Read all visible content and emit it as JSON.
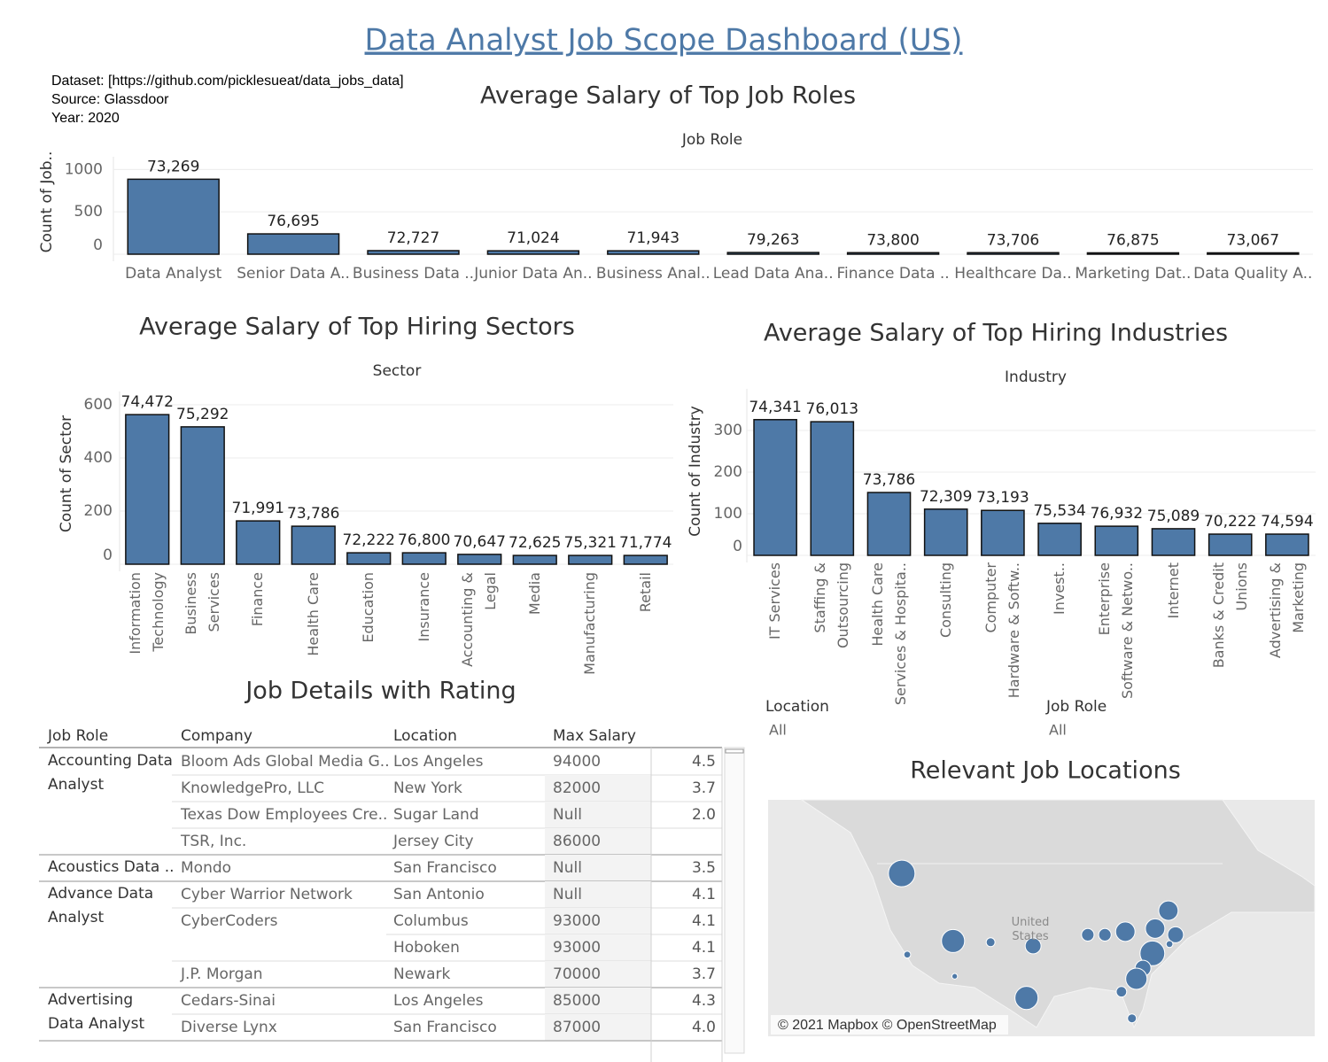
{
  "header": {
    "title": "Data Analyst Job Scope Dashboard (US)",
    "info": [
      "Dataset: [https://github.com/picklesueat/data_jobs_data]",
      "Source: Glassdoor",
      "Year: 2020"
    ]
  },
  "chart_data": [
    {
      "type": "bar",
      "title": "Average Salary of Top Job Roles",
      "x_label": "Job Role",
      "y_label": "Count of Job..",
      "categories": [
        "Data Analyst",
        "Senior Data A..",
        "Business Data ..",
        "Junior Data An..",
        "Business Anal..",
        "Lead Data Ana..",
        "Finance Data ..",
        "Healthcare Da..",
        "Marketing Dat..",
        "Data Quality A.."
      ],
      "values": [
        885,
        240,
        42,
        40,
        40,
        20,
        18,
        18,
        16,
        16
      ],
      "salaries": [
        {
          "value": 73269,
          "label": "73,269"
        },
        {
          "value": 76695,
          "label": "76,695"
        },
        {
          "value": 72727,
          "label": "72,727"
        },
        {
          "value": 71024,
          "label": "71,024"
        },
        {
          "value": 71943,
          "label": "71,943"
        },
        {
          "value": 79263,
          "label": "79,263"
        },
        {
          "value": 73800,
          "label": "73,800"
        },
        {
          "value": 73706,
          "label": "73,706"
        },
        {
          "value": 76875,
          "label": "76,875"
        },
        {
          "value": 73067,
          "label": "73,067"
        }
      ],
      "color": "#4e79a7",
      "ylim": [
        0,
        1150
      ],
      "yticks": [
        0,
        500,
        1000
      ],
      "grid": true
    },
    {
      "type": "bar",
      "title": "Average Salary of Top Hiring Sectors",
      "x_label": "Sector",
      "y_label": "Count of Sector",
      "categories": [
        "Information\nTechnology",
        "Business\nServices",
        "Finance",
        "Health Care",
        "Education",
        "Insurance",
        "Accounting &\nLegal",
        "Media",
        "Manufacturing",
        "Retail"
      ],
      "values": [
        563,
        517,
        163,
        143,
        43,
        43,
        37,
        33,
        33,
        33
      ],
      "salaries": [
        {
          "value": 74472,
          "label": "74,472"
        },
        {
          "value": 75292,
          "label": "75,292"
        },
        {
          "value": 71991,
          "label": "71,991"
        },
        {
          "value": 73786,
          "label": "73,786"
        },
        {
          "value": 72222,
          "label": "72,222"
        },
        {
          "value": 76800,
          "label": "76,800"
        },
        {
          "value": 70647,
          "label": "70,647"
        },
        {
          "value": 72625,
          "label": "72,625"
        },
        {
          "value": 75321,
          "label": "75,321"
        },
        {
          "value": 71774,
          "label": "71,774"
        }
      ],
      "color": "#4e79a7",
      "ylim": [
        0,
        650
      ],
      "yticks": [
        0,
        200,
        400,
        600
      ],
      "grid": true
    },
    {
      "type": "bar",
      "title": "Average Salary of Top Hiring Industries",
      "x_label": "Industry",
      "y_label": "Count of Industry",
      "categories": [
        "IT Services",
        "Staffing &\nOutsourcing",
        "Health Care\nServices & Hospita..",
        "Consulting",
        "Computer\nHardware & Softw..",
        "Invest..",
        "Enterprise\nSoftware & Netwo..",
        "Internet",
        "Banks & Credit\nUnions",
        "Advertising &\nMarketing"
      ],
      "values": [
        326,
        321,
        151,
        111,
        108,
        77,
        70,
        64,
        51,
        51
      ],
      "salaries": [
        {
          "value": 74341,
          "label": "74,341"
        },
        {
          "value": 76013,
          "label": "76,013"
        },
        {
          "value": 73786,
          "label": "73,786"
        },
        {
          "value": 72309,
          "label": "72,309"
        },
        {
          "value": 73193,
          "label": "73,193"
        },
        {
          "value": 75534,
          "label": "75,534"
        },
        {
          "value": 76932,
          "label": "76,932"
        },
        {
          "value": 75089,
          "label": "75,089"
        },
        {
          "value": 70222,
          "label": "70,222"
        },
        {
          "value": 74594,
          "label": "74,594"
        }
      ],
      "color": "#4e79a7",
      "ylim": [
        0,
        400
      ],
      "yticks": [
        0,
        100,
        200,
        300
      ],
      "grid": true
    },
    {
      "type": "bubble_map",
      "title": "Relevant Job Locations",
      "attribution": "© 2021 Mapbox © OpenStreetMap",
      "region_label": "United\nStates",
      "color": "#4e79a7",
      "lon_range": [
        -146.5,
        -47.5
      ],
      "lat_range": [
        21.3,
        59.5
      ],
      "points": [
        {
          "lon": -122.3,
          "lat": 47.6,
          "size": 45
        },
        {
          "lon": -121.3,
          "lat": 34.5,
          "size": 3
        },
        {
          "lon": -112.7,
          "lat": 31.0,
          "size": 2
        },
        {
          "lon": -113.0,
          "lat": 36.7,
          "size": 34
        },
        {
          "lon": -106.2,
          "lat": 36.5,
          "size": 5
        },
        {
          "lon": -98.5,
          "lat": 35.9,
          "size": 16
        },
        {
          "lon": -99.7,
          "lat": 27.5,
          "size": 34
        },
        {
          "lon": -88.6,
          "lat": 37.7,
          "size": 10
        },
        {
          "lon": -85.5,
          "lat": 37.7,
          "size": 10
        },
        {
          "lon": -81.8,
          "lat": 38.2,
          "size": 24
        },
        {
          "lon": -74.0,
          "lat": 41.6,
          "size": 24
        },
        {
          "lon": -76.4,
          "lat": 38.7,
          "size": 24
        },
        {
          "lon": -72.7,
          "lat": 37.7,
          "size": 16
        },
        {
          "lon": -73.8,
          "lat": 36.2,
          "size": 3
        },
        {
          "lon": -76.9,
          "lat": 34.7,
          "size": 39
        },
        {
          "lon": -78.6,
          "lat": 32.3,
          "size": 16
        },
        {
          "lon": -79.8,
          "lat": 30.6,
          "size": 29
        },
        {
          "lon": -82.5,
          "lat": 28.5,
          "size": 7
        },
        {
          "lon": -80.6,
          "lat": 24.2,
          "size": 5
        }
      ]
    }
  ],
  "filters": [
    {
      "label": "Location",
      "value": "All"
    },
    {
      "label": "Job Role",
      "value": "All"
    }
  ],
  "table": {
    "title": "Job Details with Rating",
    "columns": [
      "Job Role",
      "Company",
      "Location",
      "Max Salary"
    ],
    "groups": [
      {
        "role": "Accounting Data\nAnalyst",
        "rows": [
          {
            "company": "Bloom Ads Global Media G..",
            "location": "Los Angeles",
            "max_salary": 94000,
            "rating": "4.5"
          },
          {
            "company": "KnowledgePro, LLC",
            "location": "New York",
            "max_salary": 82000,
            "rating": "3.7"
          },
          {
            "company": "Texas Dow Employees Cre..",
            "location": "Sugar Land",
            "max_salary": "Null",
            "rating": "2.0"
          },
          {
            "company": "TSR, Inc.",
            "location": "Jersey City",
            "max_salary": 86000
          }
        ]
      },
      {
        "role": "Acoustics Data ..",
        "rows": [
          {
            "company": "Mondo",
            "location": "San Francisco",
            "max_salary": "Null",
            "rating": "3.5"
          }
        ]
      },
      {
        "role": "Advance Data\nAnalyst",
        "rows": [
          {
            "company": "Cyber Warrior Network",
            "location": "San Antonio",
            "max_salary": "Null",
            "rating": "4.1"
          },
          {
            "company": "CyberCoders",
            "location": "Columbus",
            "max_salary": 93000,
            "rating": "4.1"
          },
          {
            "location": "Hoboken",
            "max_salary": 93000,
            "rating": "4.1"
          },
          {
            "company": "J.P. Morgan",
            "location": "Newark",
            "max_salary": 70000,
            "rating": "3.7"
          }
        ]
      },
      {
        "role": "Advertising\nData Analyst",
        "rows": [
          {
            "company": "Cedars-Sinai",
            "location": "Los Angeles",
            "max_salary": 85000,
            "rating": "4.3"
          },
          {
            "company": "Diverse Lynx",
            "location": "San Francisco",
            "max_salary": 87000,
            "rating": "4.0"
          }
        ]
      }
    ]
  }
}
